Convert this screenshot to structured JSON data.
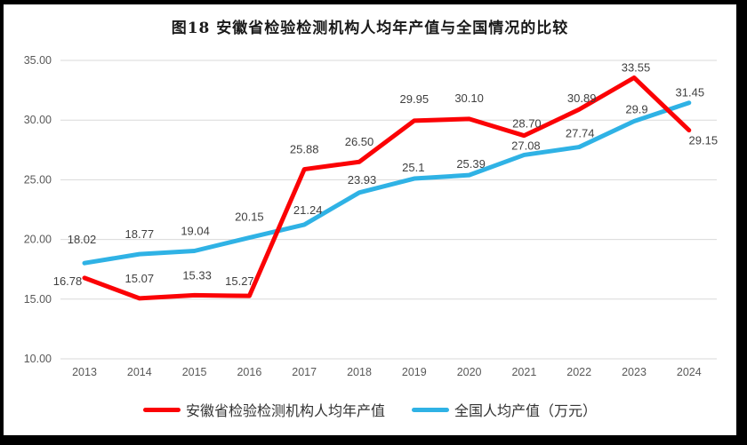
{
  "title": "图18 安徽省检验检测机构人均年产值与全国情况的比较",
  "chart_data": {
    "type": "line",
    "categories": [
      "2013",
      "2014",
      "2015",
      "2016",
      "2017",
      "2018",
      "2019",
      "2020",
      "2021",
      "2022",
      "2023",
      "2024"
    ],
    "series": [
      {
        "name": "安徽省检验检测机构人均年产值",
        "color": "#fb0205",
        "values": [
          16.78,
          15.07,
          15.33,
          15.27,
          25.88,
          26.5,
          29.95,
          30.1,
          28.7,
          30.89,
          33.55,
          29.15
        ],
        "labels": [
          "16.78",
          "15.07",
          "15.33",
          "15.27",
          "25.88",
          "26.50",
          "29.95",
          "30.10",
          "28.70",
          "30.89",
          "33.55",
          "29.15"
        ]
      },
      {
        "name": "全国人均产值（万元）",
        "color": "#2fb2e5",
        "values": [
          18.02,
          18.77,
          19.04,
          20.15,
          21.24,
          23.93,
          25.1,
          25.39,
          27.08,
          27.74,
          29.9,
          31.45
        ],
        "labels": [
          "18.02",
          "18.77",
          "19.04",
          "20.15",
          "21.24",
          "23.93",
          "25.1",
          "25.39",
          "27.08",
          "27.74",
          "29.9",
          "31.45"
        ]
      }
    ],
    "ylim": [
      10,
      35
    ],
    "ytick_step": 5,
    "ytick_labels": [
      "10.00",
      "15.00",
      "20.00",
      "25.00",
      "30.00",
      "35.00"
    ],
    "xlabel": "",
    "ylabel": "",
    "grid": "horizontal",
    "legend_position": "bottom"
  },
  "colors": {
    "gridline": "#d9d9d9",
    "tick_label": "#595959",
    "data_label": "#3f3f3f",
    "frame": "#000000",
    "background": "#ffffff"
  }
}
